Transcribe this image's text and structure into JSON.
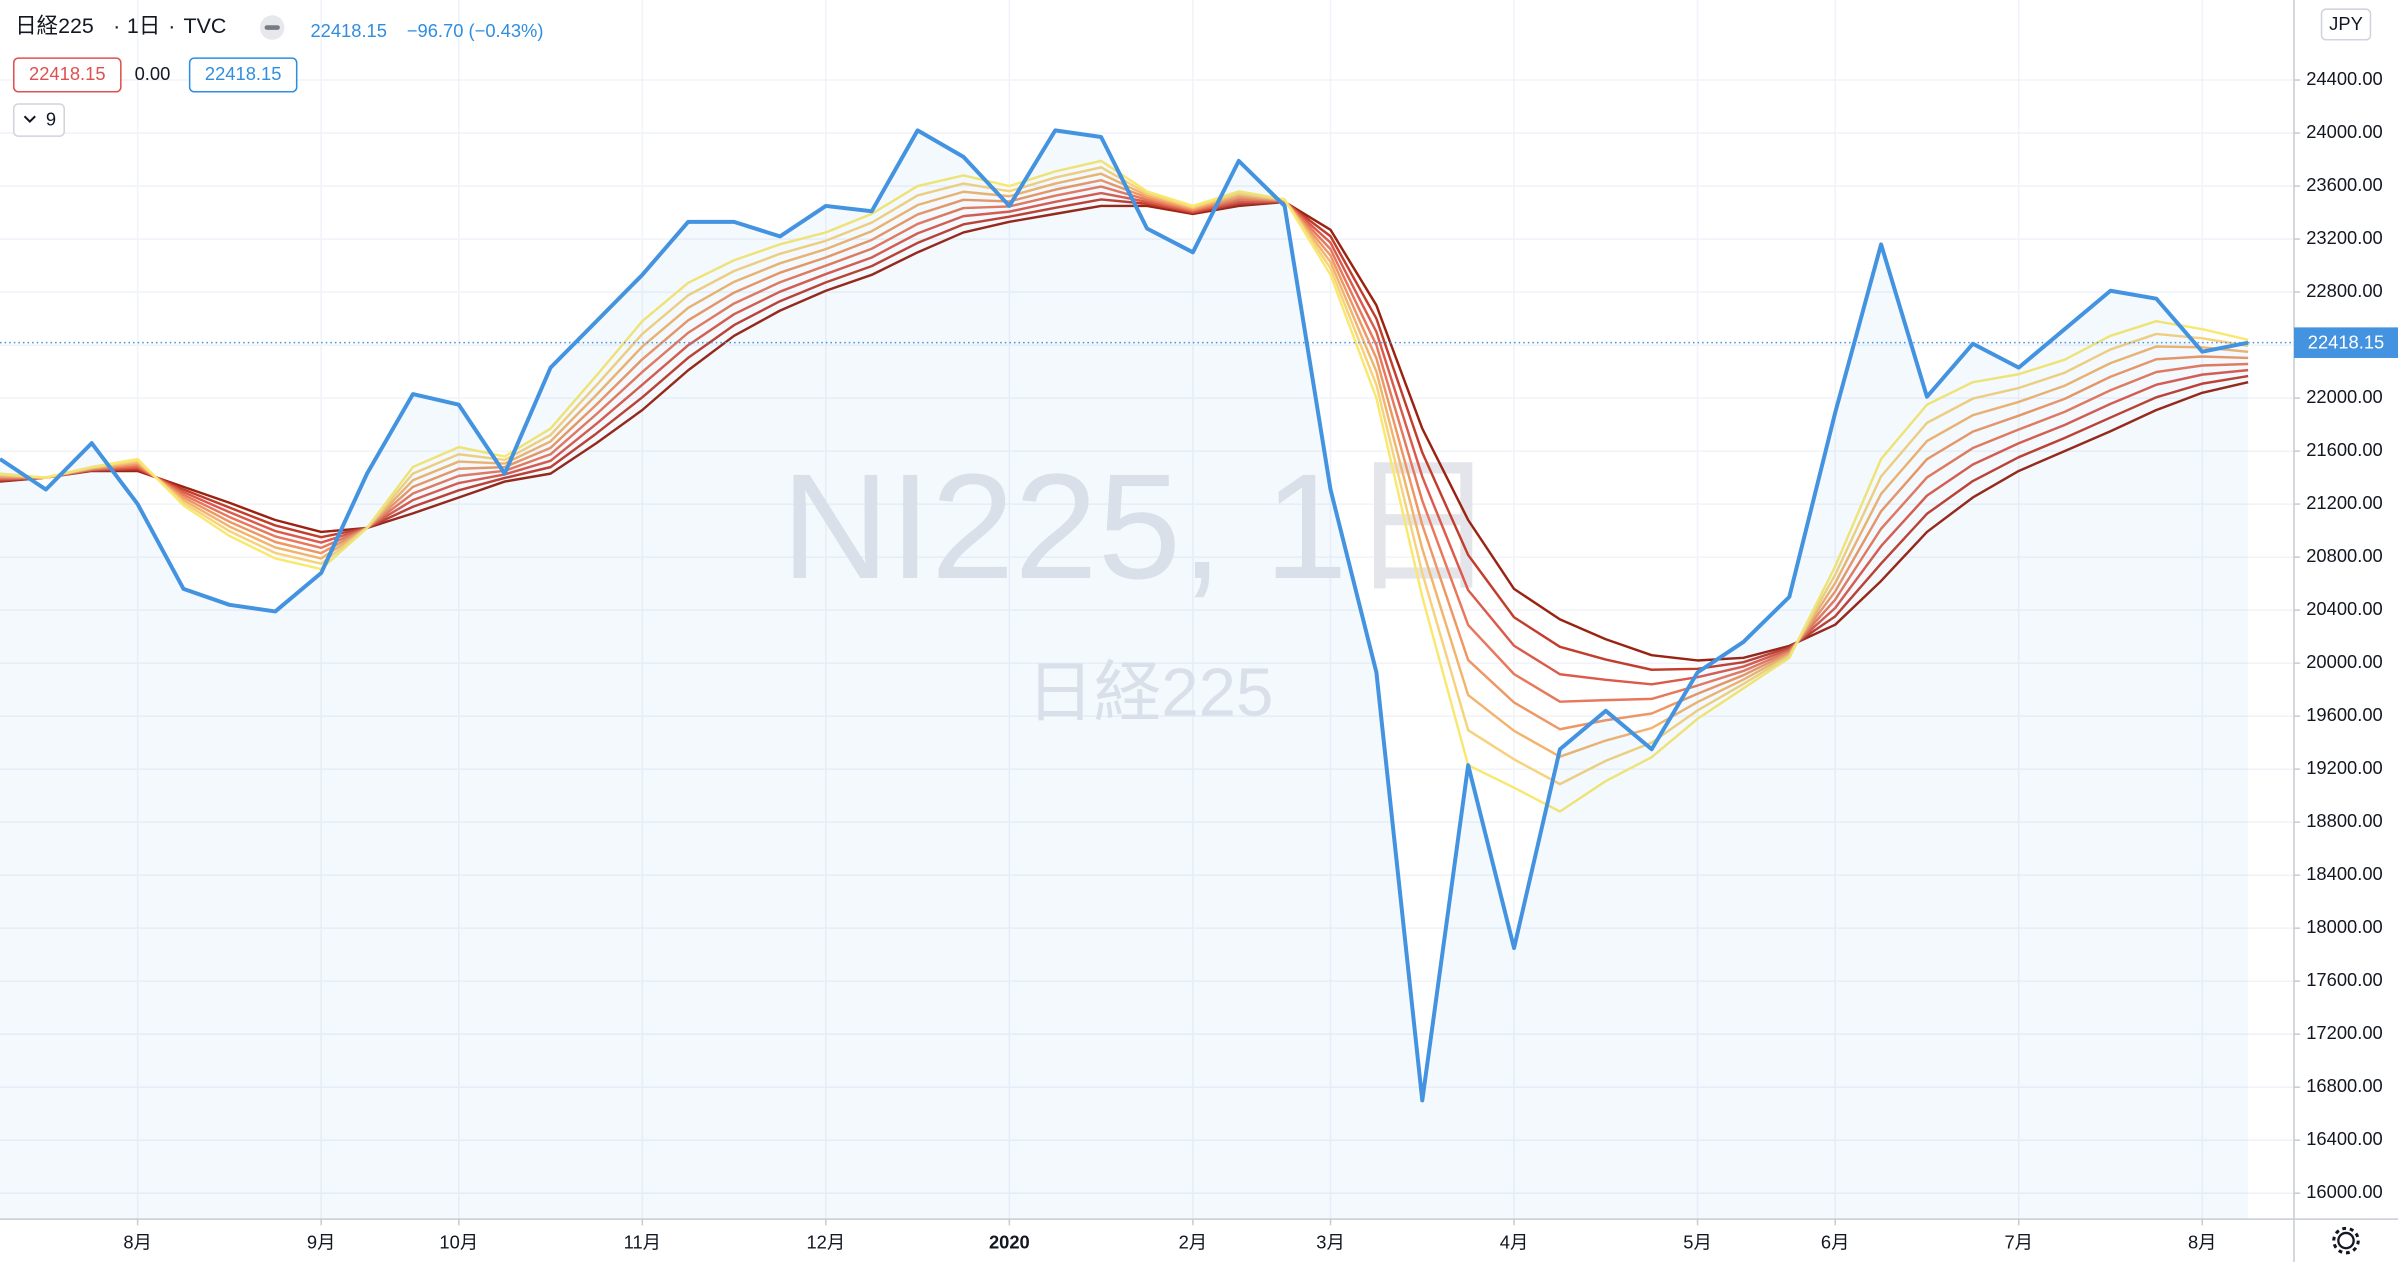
{
  "header": {
    "symbol": "日経225",
    "interval": "1日",
    "source": "TVC",
    "last": "22418.15",
    "change": "−96.70 (−0.43%)"
  },
  "legend": [
    "22418.15",
    "0.00",
    "22418.15"
  ],
  "indicator_count": "9",
  "watermark": [
    "NI225, 1日",
    "日経225"
  ],
  "price_label": "22418.15",
  "currency": "JPY",
  "chart_data": {
    "type": "line",
    "categories": [
      null,
      null,
      null,
      "8月",
      null,
      null,
      null,
      "9月",
      null,
      null,
      "10月",
      null,
      null,
      null,
      "11月",
      null,
      null,
      null,
      "12月",
      null,
      null,
      null,
      "2020",
      null,
      null,
      null,
      "2月",
      null,
      null,
      "3月",
      null,
      null,
      null,
      "4月",
      null,
      null,
      null,
      "5月",
      null,
      null,
      "6月",
      null,
      null,
      null,
      "7月",
      null,
      null,
      null,
      "8月",
      null
    ],
    "ylim": [
      15804,
      25004
    ],
    "yticks": [
      {
        "value": 16000,
        "label": "16000.00"
      },
      {
        "value": 16400,
        "label": "16400.00"
      },
      {
        "value": 16800,
        "label": "16800.00"
      },
      {
        "value": 17200,
        "label": "17200.00"
      },
      {
        "value": 17600,
        "label": "17600.00"
      },
      {
        "value": 18000,
        "label": "18000.00"
      },
      {
        "value": 18400,
        "label": "18400.00"
      },
      {
        "value": 18800,
        "label": "18800.00"
      },
      {
        "value": 19200,
        "label": "19200.00"
      },
      {
        "value": 19600,
        "label": "19600.00"
      },
      {
        "value": 20000,
        "label": "20000.00"
      },
      {
        "value": 20400,
        "label": "20400.00"
      },
      {
        "value": 20800,
        "label": "20800.00"
      },
      {
        "value": 21200,
        "label": "21200.00"
      },
      {
        "value": 21600,
        "label": "21600.00"
      },
      {
        "value": 22000,
        "label": "22000.00"
      },
      {
        "value": 22400,
        "label": "22400.00"
      },
      {
        "value": 22800,
        "label": "22800.00"
      },
      {
        "value": 23200,
        "label": "23200.00"
      },
      {
        "value": 23600,
        "label": "23600.00"
      },
      {
        "value": 24000,
        "label": "24000.00"
      },
      {
        "value": 24400,
        "label": "24400.00"
      }
    ],
    "grid": true,
    "series": [
      {
        "color": "#4393e0",
        "area": true,
        "values": [
          21540,
          21310,
          21660,
          21200,
          20560,
          20440,
          20390,
          20680,
          21430,
          22030,
          21950,
          21430,
          22230,
          22580,
          22930,
          23330,
          23330,
          23220,
          23450,
          23410,
          24020,
          23820,
          23450,
          24020,
          23970,
          23280,
          23100,
          23790,
          23450,
          21310,
          19930,
          16700,
          19230,
          17850,
          19350,
          19640,
          19350,
          19930,
          20160,
          20500,
          21890,
          23160,
          22010,
          22410,
          22230,
          22520,
          22810,
          22750,
          22350,
          22418.15
        ]
      },
      {
        "color": "#f9e870",
        "values": [
          21430,
          21400,
          21480,
          21540,
          21190,
          20960,
          20790,
          20710,
          21020,
          21480,
          21630,
          21560,
          21770,
          22170,
          22580,
          22870,
          23040,
          23160,
          23250,
          23390,
          23600,
          23680,
          23600,
          23710,
          23790,
          23560,
          23450,
          23560,
          23500,
          22930,
          22000,
          20500,
          19230,
          19060,
          18880,
          19110,
          19290,
          19580,
          19810,
          20040,
          20730,
          21540,
          21950,
          22120,
          22180,
          22290,
          22470,
          22580,
          22520,
          22440
        ]
      },
      {
        "color": "#f6d27c",
        "values": [
          21421,
          21400,
          21476,
          21527,
          21210,
          20996,
          20831,
          20750,
          21020,
          21430,
          21576,
          21533,
          21721,
          22097,
          22484,
          22776,
          22959,
          23089,
          23187,
          23324,
          23529,
          23619,
          23561,
          23664,
          23741,
          23544,
          23441,
          23544,
          23497,
          22979,
          22100,
          20681,
          19494,
          19274,
          19087,
          19263,
          19400,
          19643,
          19843,
          20053,
          20667,
          21409,
          21813,
          21996,
          22076,
          22191,
          22367,
          22484,
          22451,
          22394
        ]
      },
      {
        "color": "#f2b46c",
        "values": [
          21413,
          21400,
          21471,
          21514,
          21230,
          21031,
          20873,
          20790,
          21020,
          21380,
          21521,
          21506,
          21673,
          22024,
          22389,
          22681,
          22877,
          23017,
          23124,
          23259,
          23457,
          23557,
          23523,
          23619,
          23693,
          23529,
          23433,
          23529,
          23494,
          23027,
          22200,
          20863,
          19759,
          19489,
          19294,
          19416,
          19510,
          19706,
          19876,
          20066,
          20604,
          21277,
          21676,
          21871,
          21971,
          22093,
          22264,
          22389,
          22383,
          22349
        ]
      },
      {
        "color": "#ee9664",
        "values": [
          21404,
          21400,
          21467,
          21501,
          21250,
          21067,
          20914,
          20830,
          21020,
          21330,
          21467,
          21479,
          21624,
          21951,
          22293,
          22587,
          22796,
          22946,
          23061,
          23193,
          23386,
          23496,
          23484,
          23573,
          23644,
          23513,
          23424,
          23513,
          23491,
          23076,
          22300,
          21044,
          20023,
          19703,
          19501,
          19569,
          19620,
          19769,
          19909,
          20079,
          20541,
          21146,
          21539,
          21747,
          21867,
          21994,
          22161,
          22293,
          22314,
          22303
        ]
      },
      {
        "color": "#e8775b",
        "values": [
          21396,
          21400,
          21463,
          21489,
          21270,
          21103,
          20956,
          20870,
          21020,
          21280,
          21413,
          21451,
          21576,
          21879,
          22197,
          22493,
          22714,
          22874,
          22999,
          23127,
          23314,
          23434,
          23446,
          23527,
          23596,
          23497,
          23416,
          23497,
          23489,
          23124,
          22400,
          21226,
          20287,
          19917,
          19709,
          19721,
          19730,
          19831,
          19941,
          20091,
          20479,
          21014,
          21401,
          21623,
          21763,
          21896,
          22059,
          22197,
          22246,
          22257
        ]
      },
      {
        "color": "#dc5a4b",
        "values": [
          21387,
          21400,
          21459,
          21476,
          21290,
          21139,
          20997,
          20910,
          21020,
          21230,
          21359,
          21424,
          21527,
          21806,
          22101,
          22399,
          22633,
          22803,
          22936,
          23061,
          23243,
          23373,
          23407,
          23481,
          23547,
          23481,
          23407,
          23481,
          23486,
          23173,
          22500,
          21407,
          20551,
          20131,
          19916,
          19874,
          19840,
          19894,
          19974,
          20104,
          20416,
          20883,
          21264,
          21499,
          21659,
          21797,
          21956,
          22101,
          22177,
          22211
        ]
      },
      {
        "color": "#c23d2c",
        "values": [
          21379,
          21400,
          21454,
          21463,
          21310,
          21174,
          21039,
          20950,
          21020,
          21180,
          21304,
          21397,
          21479,
          21733,
          22006,
          22304,
          22551,
          22731,
          22873,
          22996,
          23171,
          23311,
          23369,
          23436,
          23499,
          23466,
          23399,
          23466,
          23483,
          23221,
          22600,
          21589,
          20816,
          20346,
          20123,
          20027,
          19950,
          19957,
          20007,
          20117,
          20353,
          20751,
          21127,
          21374,
          21554,
          21699,
          21853,
          22006,
          22109,
          22166
        ]
      },
      {
        "color": "#9a2210",
        "values": [
          21370,
          21400,
          21450,
          21450,
          21330,
          21210,
          21080,
          20990,
          21020,
          21130,
          21250,
          21370,
          21430,
          21660,
          21910,
          22210,
          22470,
          22660,
          22810,
          22930,
          23100,
          23250,
          23330,
          23390,
          23450,
          23450,
          23390,
          23450,
          23480,
          23270,
          22700,
          21770,
          21080,
          20560,
          20330,
          20180,
          20060,
          20020,
          20040,
          20130,
          20290,
          20620,
          20990,
          21250,
          21450,
          21600,
          21750,
          21910,
          22040,
          22120
        ]
      }
    ]
  }
}
